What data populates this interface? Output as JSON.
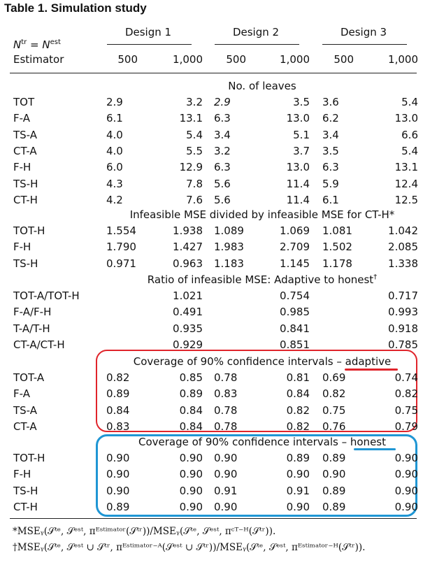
{
  "table_title": "Table 1.   Simulation study",
  "header": {
    "n_label_base": "N",
    "n_label_sup1": "tr",
    "n_label_eq": " = N",
    "n_label_sup2": "est",
    "estimator_label": "Estimator",
    "designs": [
      "Design 1",
      "Design 2",
      "Design 3"
    ],
    "sizes": [
      "500",
      "1,000",
      "500",
      "1,000",
      "500",
      "1,000"
    ]
  },
  "sections": {
    "leaves": {
      "title": "No. of leaves",
      "rows": [
        {
          "label": "TOT",
          "values": [
            "2.9",
            "3.2",
            "2.9",
            "3.5",
            "3.6",
            "5.4"
          ]
        },
        {
          "label": "F-A",
          "values": [
            "6.1",
            "13.1",
            "6.3",
            "13.0",
            "6.2",
            "13.0"
          ]
        },
        {
          "label": "TS-A",
          "values": [
            "4.0",
            "5.4",
            "3.4",
            "5.1",
            "3.4",
            "6.6"
          ]
        },
        {
          "label": "CT-A",
          "values": [
            "4.0",
            "5.5",
            "3.2",
            "3.7",
            "3.5",
            "5.4"
          ]
        },
        {
          "label": "F-H",
          "values": [
            "6.0",
            "12.9",
            "6.3",
            "13.0",
            "6.3",
            "13.1"
          ]
        },
        {
          "label": "TS-H",
          "values": [
            "4.3",
            "7.8",
            "5.6",
            "11.4",
            "5.9",
            "12.4"
          ]
        },
        {
          "label": "CT-H",
          "values": [
            "4.2",
            "7.6",
            "5.6",
            "11.4",
            "6.1",
            "12.5"
          ]
        }
      ]
    },
    "infeasible": {
      "title": "Infeasible MSE divided by infeasible MSE for CT-H*",
      "rows": [
        {
          "label": "TOT-H",
          "values": [
            "1.554",
            "1.938",
            "1.089",
            "1.069",
            "1.081",
            "1.042"
          ]
        },
        {
          "label": "F-H",
          "values": [
            "1.790",
            "1.427",
            "1.983",
            "2.709",
            "1.502",
            "2.085"
          ]
        },
        {
          "label": "TS-H",
          "values": [
            "0.971",
            "0.963",
            "1.183",
            "1.145",
            "1.178",
            "1.338"
          ]
        }
      ]
    },
    "ratio": {
      "title": "Ratio of infeasible MSE: Adaptive to honest",
      "title_mark": "†",
      "rows": [
        {
          "label": "TOT-A/TOT-H",
          "values": [
            "1.021",
            "0.754",
            "0.717"
          ]
        },
        {
          "label": "F-A/F-H",
          "values": [
            "0.491",
            "0.985",
            "0.993"
          ]
        },
        {
          "label": "T-A/T-H",
          "values": [
            "0.935",
            "0.841",
            "0.918"
          ]
        },
        {
          "label": "CT-A/CT-H",
          "values": [
            "0.929",
            "0.851",
            "0.785"
          ]
        }
      ]
    },
    "coverage_adaptive": {
      "title_prefix": "Coverage of 90% confidence intervals – ",
      "title_key": "adaptive",
      "rows": [
        {
          "label": "TOT-A",
          "values": [
            "0.82",
            "0.85",
            "0.78",
            "0.81",
            "0.69",
            "0.74"
          ]
        },
        {
          "label": "F-A",
          "values": [
            "0.89",
            "0.89",
            "0.83",
            "0.84",
            "0.82",
            "0.82"
          ]
        },
        {
          "label": "TS-A",
          "values": [
            "0.84",
            "0.84",
            "0.78",
            "0.82",
            "0.75",
            "0.75"
          ]
        },
        {
          "label": "CT-A",
          "values": [
            "0.83",
            "0.84",
            "0.78",
            "0.82",
            "0.76",
            "0.79"
          ]
        }
      ]
    },
    "coverage_honest": {
      "title_prefix": "Coverage of 90% confidence intervals – ",
      "title_key": "honest",
      "rows": [
        {
          "label": "TOT-H",
          "values": [
            "0.90",
            "0.90",
            "0.90",
            "0.89",
            "0.89",
            "0.90"
          ]
        },
        {
          "label": "F-H",
          "values": [
            "0.90",
            "0.90",
            "0.90",
            "0.90",
            "0.90",
            "0.90"
          ]
        },
        {
          "label": "TS-H",
          "values": [
            "0.90",
            "0.90",
            "0.91",
            "0.91",
            "0.89",
            "0.90"
          ]
        },
        {
          "label": "CT-H",
          "values": [
            "0.89",
            "0.90",
            "0.90",
            "0.90",
            "0.89",
            "0.90"
          ]
        }
      ]
    }
  },
  "footnotes": {
    "star": "*MSEᵧ(𝒮ᵗᵉ, 𝒮ᵉˢᵗ, πᴱˢᵗⁱᵐᵃᵗᵒʳ(𝒮ᵗʳ))/MSEᵧ(𝒮ᵗᵉ, 𝒮ᵉˢᵗ, πᶜᵀ⁻ᴴ(𝒮ᵗʳ)).",
    "dagger": "†MSEᵧ(𝒮ᵗᵉ, 𝒮ᵉˢᵗ ∪ 𝒮ᵗʳ, πᴱˢᵗⁱᵐᵃᵗᵒʳ⁻ᴬ(𝒮ᵉˢᵗ ∪ 𝒮ᵗʳ))/MSEᵧ(𝒮ᵗᵉ, 𝒮ᵉˢᵗ, πᴱˢᵗⁱᵐᵃᵗᵒʳ⁻ᴴ(𝒮ᵗʳ))."
  },
  "colors": {
    "adaptive_box": "#e0242b",
    "honest_box": "#1f96d4"
  }
}
